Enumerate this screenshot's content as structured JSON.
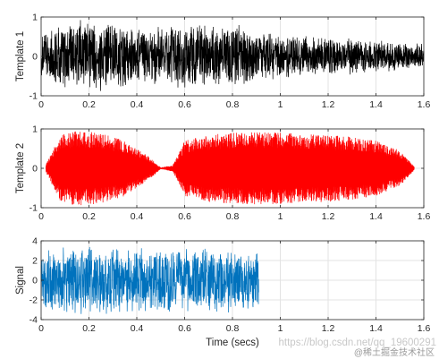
{
  "chart_data": [
    {
      "type": "line",
      "ylabel": "Template 1",
      "xlabel": "",
      "xlim": [
        0,
        1.6
      ],
      "ylim": [
        -1,
        1
      ],
      "x_ticks": [
        "0",
        "0.2",
        "0.4",
        "0.6",
        "0.8",
        "1",
        "1.2",
        "1.4",
        "1.6"
      ],
      "y_ticks": [
        "-1",
        "0",
        "1"
      ],
      "grid": true,
      "color": "#000000",
      "series": [
        {
          "x_range": [
            0,
            1.6
          ],
          "envelope_x": [
            0,
            0.1,
            0.2,
            0.3,
            0.4,
            0.5,
            0.6,
            0.7,
            0.8,
            0.9,
            1.0,
            1.1,
            1.2,
            1.3,
            1.4,
            1.5,
            1.6
          ],
          "envelope_amp": [
            0.5,
            0.75,
            0.85,
            0.75,
            0.7,
            0.65,
            0.75,
            0.7,
            0.72,
            0.6,
            0.5,
            0.45,
            0.45,
            0.42,
            0.38,
            0.32,
            0.3
          ]
        }
      ]
    },
    {
      "type": "line",
      "ylabel": "Template 2",
      "xlabel": "",
      "xlim": [
        0,
        1.6
      ],
      "ylim": [
        -1,
        1
      ],
      "x_ticks": [
        "0",
        "0.2",
        "0.4",
        "0.6",
        "0.8",
        "1",
        "1.2",
        "1.4",
        "1.6"
      ],
      "y_ticks": [
        "-1",
        "0",
        "1"
      ],
      "grid": true,
      "color": "#ff0000",
      "series": [
        {
          "x_range": [
            0.02,
            1.56
          ],
          "envelope_x": [
            0.02,
            0.08,
            0.15,
            0.25,
            0.35,
            0.45,
            0.5,
            0.55,
            0.6,
            0.7,
            0.8,
            0.9,
            1.0,
            1.1,
            1.2,
            1.3,
            1.4,
            1.5,
            1.56
          ],
          "envelope_amp": [
            0.1,
            0.85,
            0.95,
            0.9,
            0.7,
            0.3,
            0.02,
            0.08,
            0.7,
            0.85,
            0.9,
            0.92,
            0.9,
            0.88,
            0.85,
            0.8,
            0.7,
            0.45,
            0.05
          ]
        }
      ]
    },
    {
      "type": "line",
      "ylabel": "Signal",
      "xlabel": "Time (secs)",
      "xlim": [
        0,
        1.6
      ],
      "ylim": [
        -4,
        4
      ],
      "x_ticks": [
        "0",
        "0.2",
        "0.4",
        "0.6",
        "0.8",
        "1",
        "1.2",
        "1.4",
        "1.6"
      ],
      "y_ticks": [
        "-4",
        "-2",
        "0",
        "2",
        "4"
      ],
      "grid": true,
      "color": "#0072bd",
      "series": [
        {
          "x_range": [
            0,
            0.91
          ],
          "envelope_x": [
            0,
            0.2,
            0.4,
            0.6,
            0.8,
            0.91
          ],
          "envelope_amp": [
            2.6,
            3.2,
            2.8,
            3.0,
            2.8,
            2.6
          ]
        }
      ]
    }
  ],
  "watermark": {
    "url_text": "https://blog.csdn.net/qq_19600291",
    "site_text": "@稀土掘金技术社区"
  }
}
